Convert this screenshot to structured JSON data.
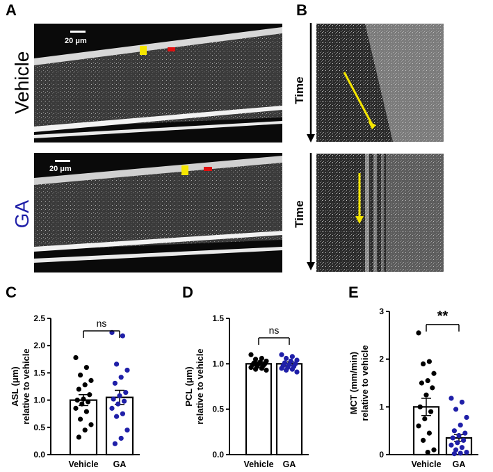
{
  "panels": {
    "A": {
      "letter": "A",
      "rows": [
        {
          "label": "Vehicle",
          "scale_bar": "20 μm",
          "label_color": "#111111"
        },
        {
          "label": "GA",
          "scale_bar": "20 μm",
          "label_color": "#1f1fa8"
        }
      ]
    },
    "B": {
      "letter": "B",
      "axis_label": "Time"
    },
    "C": {
      "letter": "C"
    },
    "D": {
      "letter": "D"
    },
    "E": {
      "letter": "E"
    }
  },
  "chart_data": [
    {
      "type": "bar",
      "panel": "C",
      "categories": [
        "Vehicle",
        "GA"
      ],
      "means": [
        1.0,
        1.05
      ],
      "sem": [
        0.1,
        0.13
      ],
      "ylabel_lines": [
        "ASL (μm)",
        "relative to vehicle"
      ],
      "ylim": [
        0,
        2.5
      ],
      "yticks": [
        "0.0",
        "0.5",
        "1.0",
        "1.5",
        "2.0",
        "2.5"
      ],
      "significance": "ns",
      "points": [
        [
          1.78,
          1.6,
          1.46,
          1.36,
          1.28,
          1.2,
          1.1,
          1.02,
          1.0,
          0.97,
          0.93,
          0.85,
          0.79,
          0.65,
          0.55,
          0.45,
          0.32
        ],
        [
          2.24,
          2.18,
          1.66,
          1.55,
          1.42,
          1.31,
          1.14,
          1.08,
          1.02,
          0.98,
          0.93,
          0.85,
          0.75,
          0.7,
          0.45,
          0.3,
          0.2
        ]
      ],
      "point_colors": [
        "#000000",
        "#1f1fa8"
      ]
    },
    {
      "type": "bar",
      "panel": "D",
      "categories": [
        "Vehicle",
        "GA"
      ],
      "means": [
        1.0,
        1.0
      ],
      "sem": [
        0.02,
        0.02
      ],
      "ylabel_lines": [
        "PCL (μm)",
        "relative to vehicle"
      ],
      "ylim": [
        0,
        1.5
      ],
      "yticks": [
        "0.0",
        "0.5",
        "1.0",
        "1.5"
      ],
      "significance": "ns",
      "points": [
        [
          1.1,
          1.06,
          1.05,
          1.03,
          1.02,
          1.01,
          1.0,
          1.0,
          0.99,
          0.98,
          0.97,
          0.96,
          0.95,
          0.94,
          0.93
        ],
        [
          1.1,
          1.08,
          1.06,
          1.04,
          1.03,
          1.01,
          1.0,
          0.99,
          0.98,
          0.97,
          0.96,
          0.95,
          0.94,
          0.93,
          0.91
        ]
      ],
      "point_colors": [
        "#000000",
        "#1f1fa8"
      ]
    },
    {
      "type": "bar",
      "panel": "E",
      "categories": [
        "Vehicle",
        "GA"
      ],
      "means": [
        1.0,
        0.35
      ],
      "sem": [
        0.18,
        0.07
      ],
      "ylabel_lines": [
        "MCT (mm/min)",
        "relative to vehicle"
      ],
      "ylim": [
        0,
        3
      ],
      "yticks": [
        "0",
        "1",
        "2",
        "3"
      ],
      "significance": "**",
      "points": [
        [
          2.55,
          1.95,
          1.9,
          1.7,
          1.55,
          1.5,
          1.4,
          1.25,
          1.0,
          0.9,
          0.75,
          0.6,
          0.45,
          0.3,
          0.1,
          0.05
        ],
        [
          1.18,
          1.1,
          0.95,
          0.78,
          0.62,
          0.5,
          0.45,
          0.4,
          0.35,
          0.3,
          0.25,
          0.2,
          0.15,
          0.1,
          0.05,
          0.03,
          0.02
        ]
      ],
      "point_colors": [
        "#000000",
        "#1f1fa8"
      ]
    }
  ]
}
